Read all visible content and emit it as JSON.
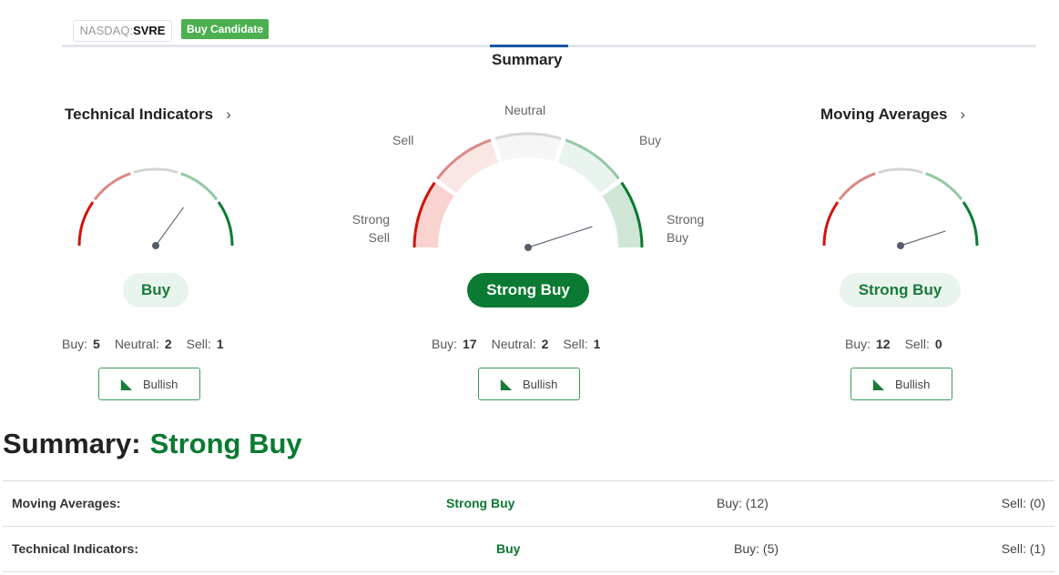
{
  "header": {
    "exchange": "NASDAQ",
    "symbol": "SVRE",
    "badge": "Buy Candidate",
    "tab": "Summary"
  },
  "gauge_labels": {
    "strong_sell_1": "Strong",
    "strong_sell_2": "Sell",
    "sell": "Sell",
    "neutral": "Neutral",
    "buy": "Buy",
    "strong_buy_1": "Strong",
    "strong_buy_2": "Buy"
  },
  "colors": {
    "strong_sell": "#d0140c",
    "sell": "#d98a84",
    "neutral": "#d6d6d6",
    "buy": "#94c9a4",
    "strong_buy": "#0b7a32"
  },
  "technical": {
    "title": "Technical Indicators",
    "rating": "Buy",
    "needle_level": 0.7,
    "buy_label": "Buy:",
    "buy": "5",
    "neutral_label": "Neutral:",
    "neutral": "2",
    "sell_label": "Sell:",
    "sell": "1",
    "trend": "Bullish",
    "trend_icon": "bull-icon"
  },
  "summary_gauge": {
    "rating": "Strong Buy",
    "needle_level": 0.9,
    "buy_label": "Buy:",
    "buy": "17",
    "neutral_label": "Neutral:",
    "neutral": "2",
    "sell_label": "Sell:",
    "sell": "1",
    "trend": "Bullish",
    "trend_icon": "bull-icon"
  },
  "moving": {
    "title": "Moving Averages",
    "rating": "Strong Buy",
    "needle_level": 0.9,
    "buy_label": "Buy:",
    "buy": "12",
    "sell_label": "Sell:",
    "sell": "0",
    "trend": "Bullish",
    "trend_icon": "bull-icon"
  },
  "summary": {
    "label": "Summary:",
    "value": "Strong Buy"
  },
  "table": [
    {
      "name": "Moving Averages:",
      "rating": "Strong Buy",
      "buy": "Buy: (12)",
      "sell": "Sell: (0)"
    },
    {
      "name": "Technical Indicators:",
      "rating": "Buy",
      "buy": "Buy: (5)",
      "sell": "Sell: (1)"
    }
  ]
}
